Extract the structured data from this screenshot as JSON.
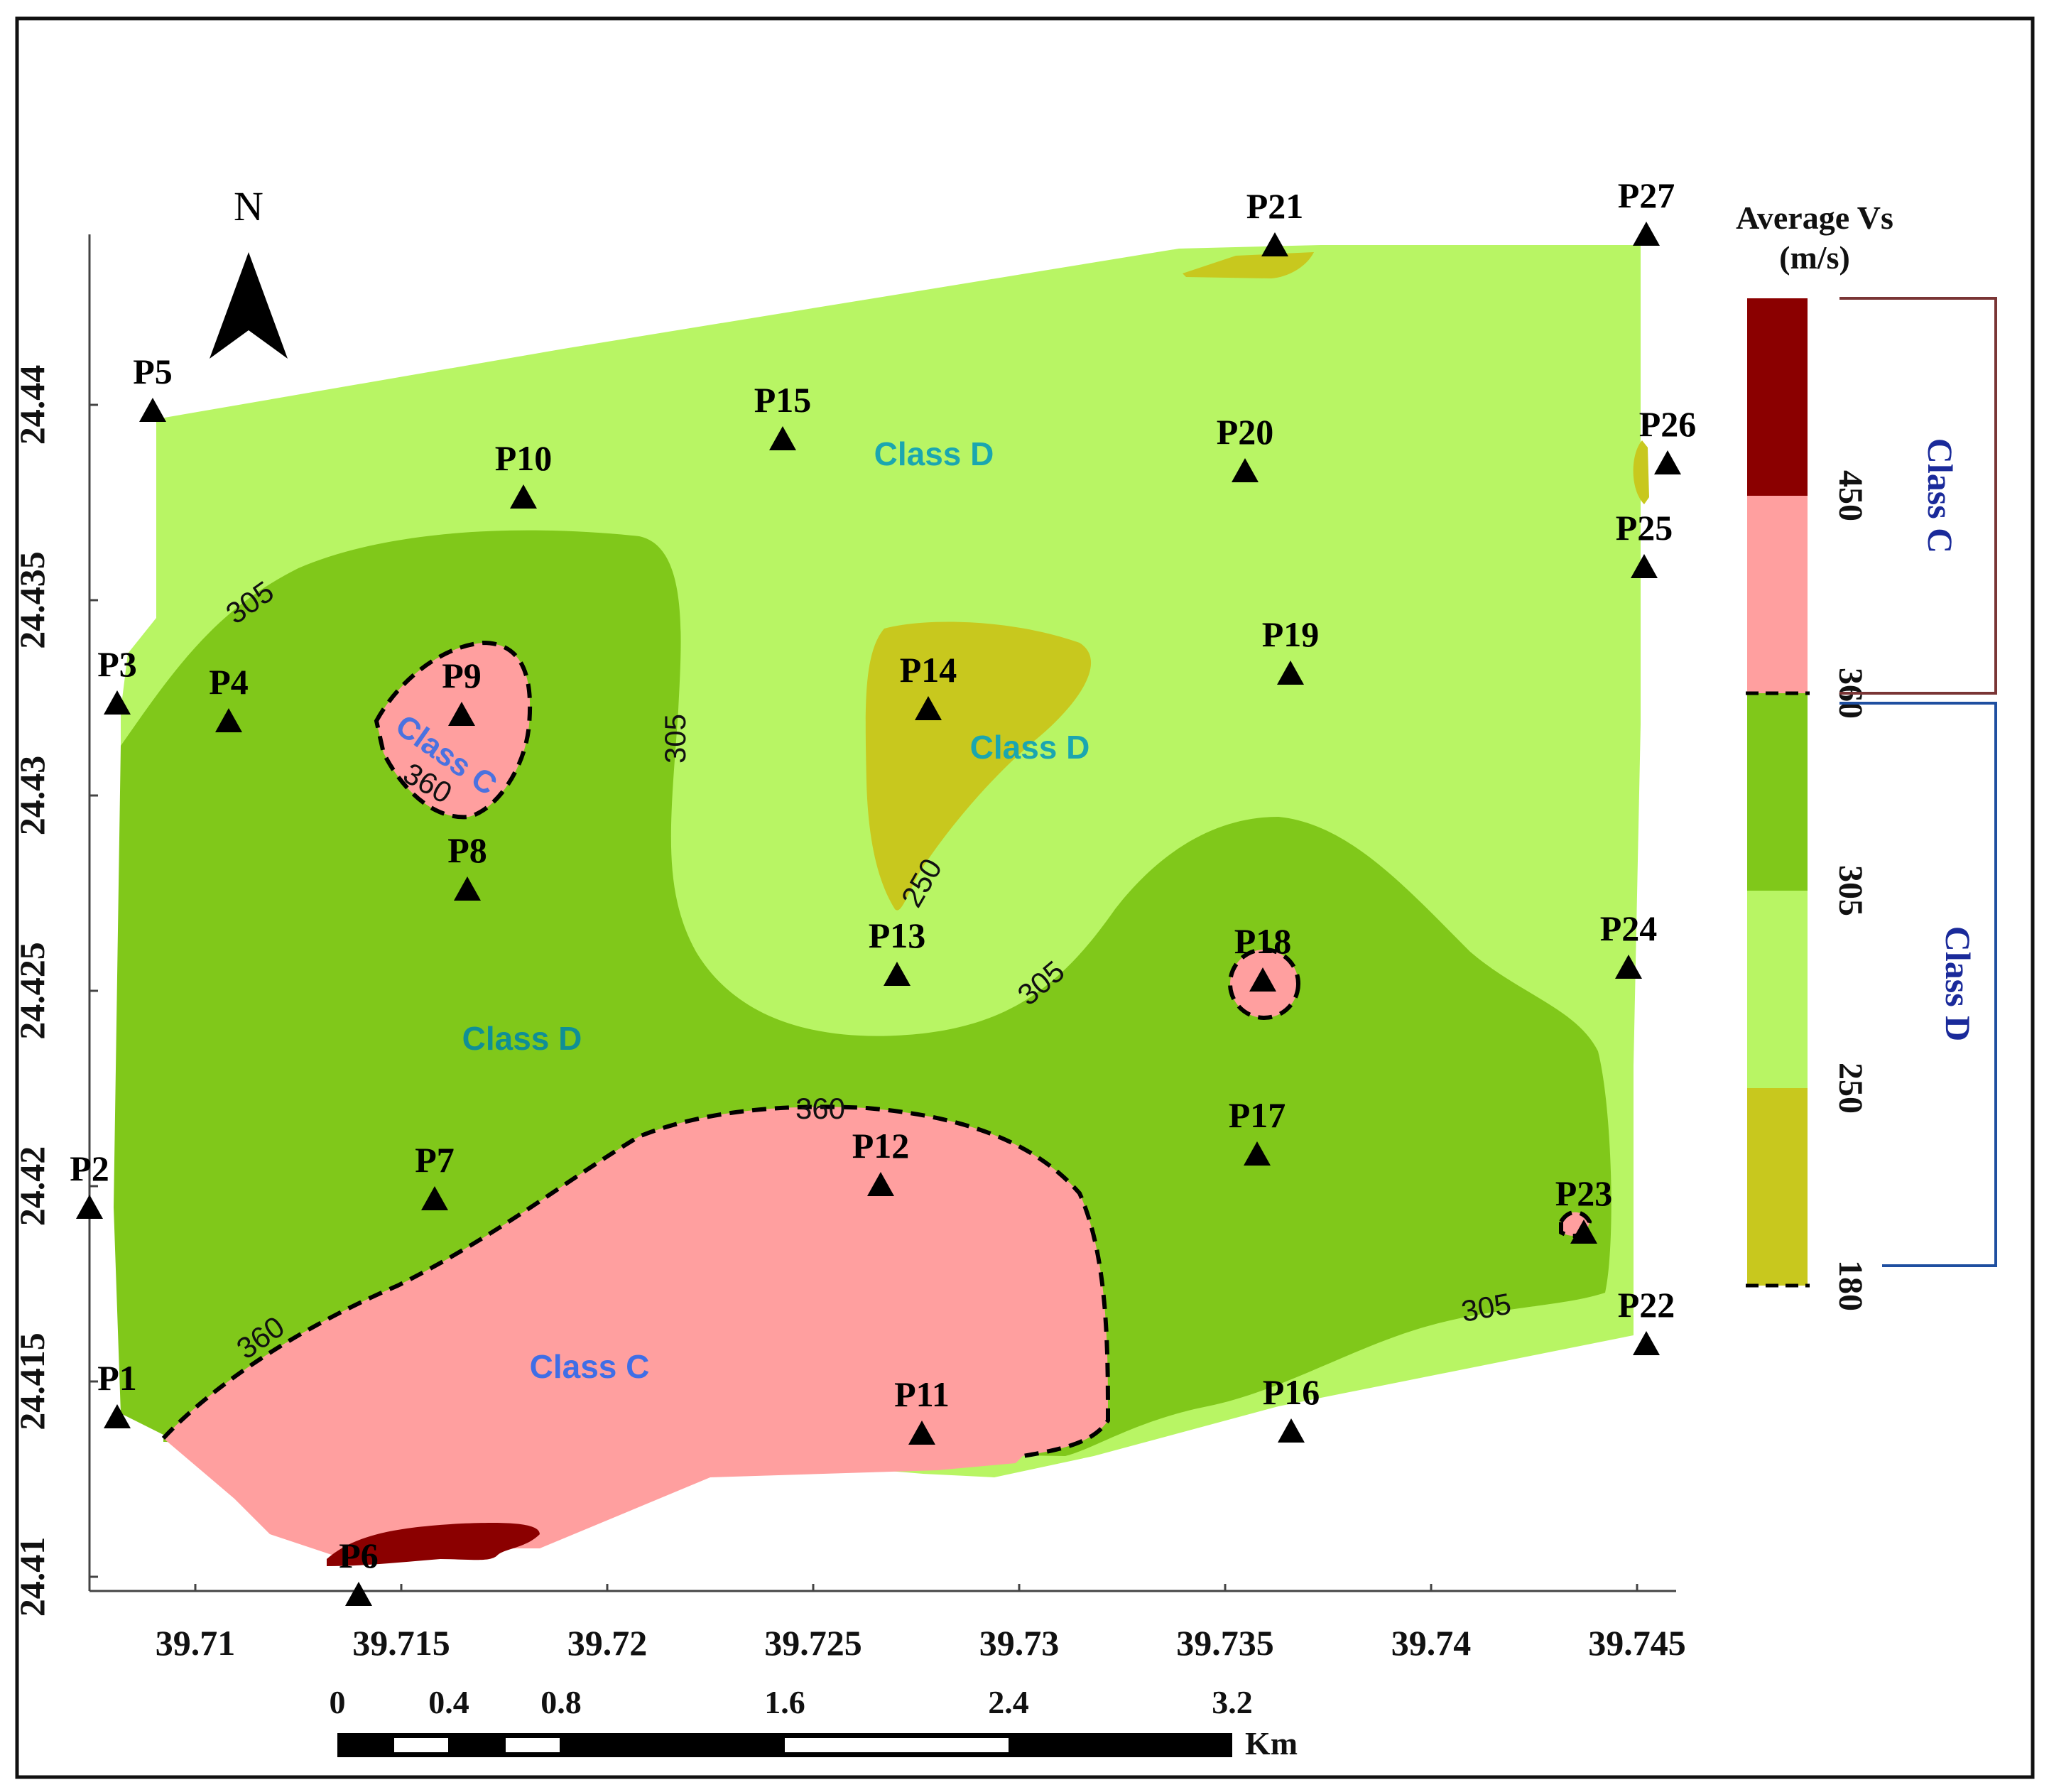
{
  "map": {
    "north_label": "N",
    "legend": {
      "title_line1": "Average Vs",
      "title_line2": "(m/s)",
      "ticks": [
        "450",
        "360",
        "305",
        "250",
        "180"
      ],
      "class_c_label": "Class C",
      "class_d_label": "Class D",
      "colors": {
        "above_450": "#8b0000",
        "360_450": "#ff9f9f",
        "305_360": "#80c81a",
        "250_305": "#b8f564",
        "180_250": "#c8c81e"
      },
      "bracket_c_color": "#7a3535",
      "bracket_d_color": "#1f4fa0",
      "class_text_color": "#1a2a9a"
    },
    "x_ticks": [
      "39.71",
      "39.715",
      "39.72",
      "39.725",
      "39.73",
      "39.735",
      "39.74",
      "39.745"
    ],
    "y_ticks": [
      "24.41",
      "24.415",
      "24.42",
      "24.425",
      "24.43",
      "24.435",
      "24.44"
    ],
    "scale_bar": {
      "labels": [
        "0",
        "0.4",
        "0.8",
        "1.6",
        "2.4",
        "3.2"
      ],
      "unit": "Km"
    },
    "stations": [
      {
        "id": "P1"
      },
      {
        "id": "P2"
      },
      {
        "id": "P3"
      },
      {
        "id": "P4"
      },
      {
        "id": "P5"
      },
      {
        "id": "P6"
      },
      {
        "id": "P7"
      },
      {
        "id": "P8"
      },
      {
        "id": "P9"
      },
      {
        "id": "P10"
      },
      {
        "id": "P11"
      },
      {
        "id": "P12"
      },
      {
        "id": "P13"
      },
      {
        "id": "P14"
      },
      {
        "id": "P15"
      },
      {
        "id": "P16"
      },
      {
        "id": "P17"
      },
      {
        "id": "P18"
      },
      {
        "id": "P19"
      },
      {
        "id": "P20"
      },
      {
        "id": "P21"
      },
      {
        "id": "P22"
      },
      {
        "id": "P23"
      },
      {
        "id": "P24"
      },
      {
        "id": "P25"
      },
      {
        "id": "P26"
      },
      {
        "id": "P27"
      }
    ],
    "zone_labels": [
      "Class D",
      "Class D",
      "Class D",
      "Class C",
      "Class C"
    ],
    "contour_labels": [
      "305",
      "305",
      "305",
      "305",
      "360",
      "360",
      "360",
      "250",
      "305"
    ]
  }
}
